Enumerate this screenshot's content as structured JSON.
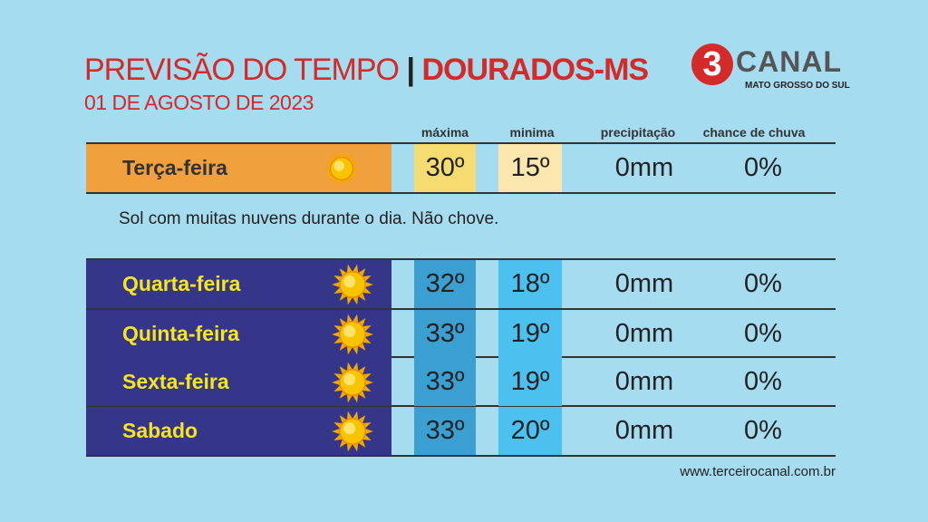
{
  "header": {
    "title": "PREVISÃO DO TEMPO",
    "separator": "|",
    "city": "DOURADOS-MS",
    "date": "01 DE AGOSTO DE 2023"
  },
  "logo": {
    "number": "3",
    "name": "CANAL",
    "region": "MATO GROSSO DO SUL"
  },
  "columns": [
    "máxima",
    "minima",
    "precipitação",
    "chance de chuva"
  ],
  "today": {
    "day": "Terça-feira",
    "max": "30º",
    "min": "15º",
    "precipitation": "0mm",
    "chance": "0%",
    "description": "Sol com muitas nuvens durante o dia. Não chove."
  },
  "rows": [
    {
      "day": "Quarta-feira",
      "max": "32º",
      "min": "18º",
      "precipitation": "0mm",
      "chance": "0%"
    },
    {
      "day": "Quinta-feira",
      "max": "33º",
      "min": "19º",
      "precipitation": "0mm",
      "chance": "0%"
    },
    {
      "day": "Sexta-feira",
      "max": "33º",
      "min": "19º",
      "precipitation": "0mm",
      "chance": "0%"
    },
    {
      "day": "Sabado",
      "max": "33º",
      "min": "20º",
      "precipitation": "0mm",
      "chance": "0%"
    }
  ],
  "footer": "www.terceirocanal.com.br"
}
